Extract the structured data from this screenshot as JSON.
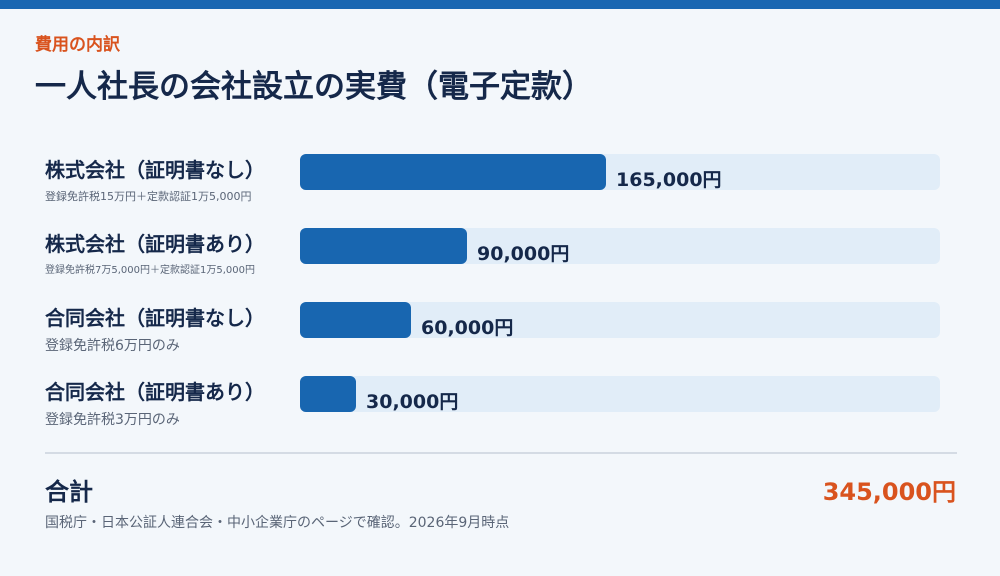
{
  "header": {
    "eyebrow": "費用の内訳",
    "title": "一人社長の会社設立の実費（電子定款）"
  },
  "chart_data": {
    "type": "bar",
    "orientation": "horizontal",
    "categories": [
      "株式会社（証明書なし）",
      "株式会社（証明書あり）",
      "合同会社（証明書なし）",
      "合同会社（証明書あり）"
    ],
    "notes": [
      "登録免許税15万円＋定款認証1万5,000円",
      "登録免許税7万5,000円＋定款認証1万5,000円",
      "登録免許税6万円のみ",
      "登録免許税3万円のみ"
    ],
    "values": [
      165000,
      90000,
      60000,
      30000
    ],
    "value_labels": [
      "165,000円",
      "90,000円",
      "60,000円",
      "30,000円"
    ],
    "xlim": [
      0,
      345000
    ],
    "grid": false,
    "colors": {
      "bar": "#1866b0",
      "track": "#e1edf8"
    }
  },
  "total": {
    "label": "合計",
    "value": "345,000円"
  },
  "source": "国税庁・日本公証人連合会・中小企業庁のページで確認。2026年9月時点",
  "colors": {
    "accent": "#d9531e",
    "topbar": "#1a67b2"
  }
}
